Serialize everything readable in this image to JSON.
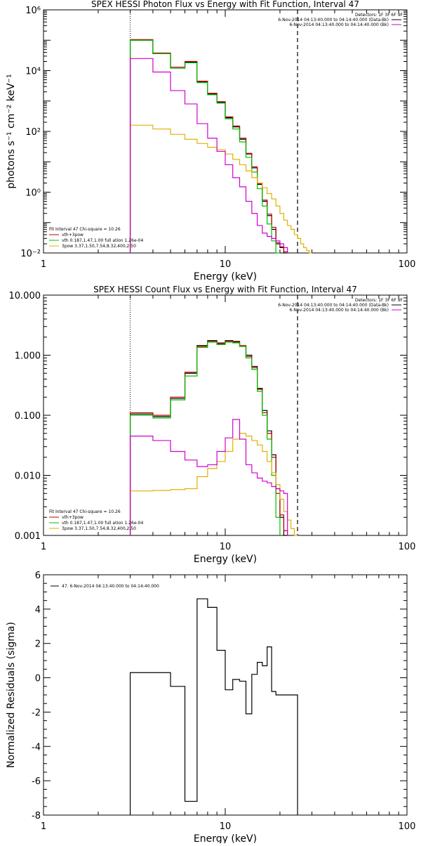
{
  "colors": {
    "total": "#c00000",
    "thermal": "#00c000",
    "nonthermal": "#e0b000",
    "background": "#d000d0",
    "data": "#000000"
  },
  "chart_data": [
    {
      "type": "line",
      "title": "SPEX HESSI Photon Flux vs Energy with Fit Function, Interval 47",
      "xlabel": "Energy (keV)",
      "ylabel": "photons s⁻¹ cm⁻² keV⁻¹",
      "xscale": "log",
      "yscale": "log",
      "xlim": [
        1,
        100
      ],
      "ylim": [
        0.01,
        1000000
      ],
      "xticks": [
        "1",
        "10",
        "100"
      ],
      "yticks": [
        {
          "value": 0.01,
          "label": "10⁻²"
        },
        {
          "value": 1,
          "label": "10⁰"
        },
        {
          "value": 100,
          "label": "10²"
        },
        {
          "value": 10000,
          "label": "10⁴"
        },
        {
          "value": 1000000,
          "label": "10⁶"
        }
      ],
      "detectors": "Detectors: 1F 3F 6F 9F",
      "legend_right": [
        {
          "text": "6-Nov-2014 04:13:40.000 to 04:14:40.000 (Data-Bk)",
          "color": "#000000"
        },
        {
          "text": "6-Nov-2014 04:13:40.000 to 04:14:40.000 (Bk)",
          "color": "#d000d0"
        }
      ],
      "fit_legend": [
        {
          "text": "Fit Interval 47   Chi-square = 10.26",
          "color": "#000000"
        },
        {
          "text": "vth+3pow",
          "color": "#c00000"
        },
        {
          "text": "vth 0.187,1.47,1.00  full ation 1.26e-04",
          "color": "#00c000"
        },
        {
          "text": "3pow 3.37,1.50,7.54,8.32,400,2.50",
          "color": "#e0b000"
        }
      ],
      "edges": [
        3,
        4,
        5,
        6,
        7,
        8,
        9,
        10,
        11,
        12,
        13,
        14,
        15,
        16,
        17,
        18,
        19,
        20,
        21,
        22,
        23,
        24,
        25,
        26,
        27,
        28,
        29,
        30
      ],
      "series": [
        {
          "key": "data",
          "color": "#000000",
          "values": [
            100000,
            36000,
            12000,
            19000,
            4200,
            1700,
            900,
            280,
            140,
            55,
            18,
            6.3,
            1.8,
            0.5,
            0.17,
            0.06,
            0.02,
            0.015,
            0.01
          ]
        },
        {
          "key": "total",
          "color": "#c00000",
          "values": [
            105000,
            38000,
            13000,
            20000,
            4500,
            1800,
            950,
            300,
            150,
            60,
            19,
            6.8,
            1.9,
            0.55,
            0.19,
            0.07,
            0.022,
            0.016,
            0.011
          ]
        },
        {
          "key": "thermal",
          "color": "#00c000",
          "values": [
            100000,
            36000,
            12000,
            18000,
            4000,
            1600,
            850,
            260,
            120,
            45,
            14,
            4.6,
            1.3,
            0.35,
            0.09,
            0.025,
            0.01
          ]
        },
        {
          "key": "nonthermal",
          "color": "#e0b000",
          "values": [
            160,
            120,
            80,
            55,
            40,
            30,
            25,
            18,
            12,
            8,
            5,
            3,
            2,
            1.4,
            0.9,
            0.6,
            0.35,
            0.2,
            0.12,
            0.08,
            0.06,
            0.04,
            0.03,
            0.02,
            0.015,
            0.012,
            0.01
          ]
        },
        {
          "key": "background",
          "color": "#d000d0",
          "values": [
            25000,
            9000,
            2200,
            800,
            180,
            60,
            22,
            8,
            3,
            1.5,
            0.5,
            0.2,
            0.08,
            0.045,
            0.035,
            0.03,
            0.025,
            0.02,
            0.015
          ]
        }
      ],
      "vline_dotted": 3,
      "vline_dashed": 25
    },
    {
      "type": "line",
      "title": "SPEX HESSI Count Flux vs Energy with Fit Function, Interval 47",
      "xlabel": "Energy (keV)",
      "ylabel": "",
      "xscale": "log",
      "yscale": "log",
      "xlim": [
        1,
        100
      ],
      "ylim": [
        0.001,
        10
      ],
      "xticks": [
        "1",
        "10",
        "100"
      ],
      "yticks": [
        {
          "value": 0.001,
          "label": "0.001"
        },
        {
          "value": 0.01,
          "label": "0.010"
        },
        {
          "value": 0.1,
          "label": "0.100"
        },
        {
          "value": 1,
          "label": "1.000"
        },
        {
          "value": 10,
          "label": "10.000"
        }
      ],
      "detectors": "Detectors: 1F 3F 6F 9F",
      "legend_right": [
        {
          "text": "6-Nov-2014 04:13:40.000 to 04:14:40.000 (Data-Bk)",
          "color": "#000000"
        },
        {
          "text": "6-Nov-2014 04:13:40.000 to 04:14:40.000 (Bk)",
          "color": "#d000d0"
        }
      ],
      "fit_legend": [
        {
          "text": "Fit Interval 47   Chi-square = 10.26",
          "color": "#000000"
        },
        {
          "text": "vth+3pow",
          "color": "#c00000"
        },
        {
          "text": "vth 0.187,1.47,1.00  full ation 1.26e-04",
          "color": "#00c000"
        },
        {
          "text": "3pow 3.37,1.50,7.54,8.32,400,2.50",
          "color": "#e0b000"
        }
      ],
      "edges": [
        3,
        4,
        5,
        6,
        7,
        8,
        9,
        10,
        11,
        12,
        13,
        14,
        15,
        16,
        17,
        18,
        19,
        20,
        21,
        22,
        23,
        24,
        25,
        26,
        27,
        28,
        29,
        30
      ],
      "series": [
        {
          "key": "data",
          "color": "#000000",
          "values": [
            0.105,
            0.095,
            0.19,
            0.5,
            1.45,
            1.75,
            1.6,
            1.75,
            1.7,
            1.4,
            1.0,
            0.65,
            0.28,
            0.12,
            0.055,
            0.022,
            0.006,
            0.002,
            0.001
          ]
        },
        {
          "key": "total",
          "color": "#c00000",
          "values": [
            0.11,
            0.1,
            0.2,
            0.52,
            1.4,
            1.7,
            1.55,
            1.7,
            1.65,
            1.45,
            0.95,
            0.62,
            0.27,
            0.11,
            0.05,
            0.02,
            0.005,
            0.0022,
            0.0012
          ]
        },
        {
          "key": "thermal",
          "color": "#00c000",
          "values": [
            0.1,
            0.09,
            0.18,
            0.45,
            1.35,
            1.65,
            1.5,
            1.65,
            1.6,
            1.4,
            0.9,
            0.58,
            0.25,
            0.1,
            0.04,
            0.01,
            0.002
          ]
        },
        {
          "key": "nonthermal",
          "color": "#e0b000",
          "values": [
            0.0055,
            0.0056,
            0.0058,
            0.006,
            0.0095,
            0.013,
            0.017,
            0.025,
            0.04,
            0.05,
            0.045,
            0.038,
            0.032,
            0.025,
            0.017,
            0.011,
            0.007,
            0.004,
            0.0025,
            0.0018,
            0.0013,
            0.001
          ]
        },
        {
          "key": "background",
          "color": "#d000d0",
          "values": [
            0.045,
            0.038,
            0.025,
            0.018,
            0.014,
            0.015,
            0.025,
            0.042,
            0.085,
            0.04,
            0.015,
            0.011,
            0.009,
            0.008,
            0.0075,
            0.0065,
            0.006,
            0.0055,
            0.005
          ]
        }
      ],
      "vline_dotted": 3,
      "vline_dashed": 25
    },
    {
      "type": "line",
      "title": "",
      "xlabel": "Energy (keV)",
      "ylabel": "Normalized Residuals (sigma)",
      "xscale": "log",
      "yscale": "linear",
      "xlim": [
        1,
        100
      ],
      "ylim": [
        -8,
        6
      ],
      "xticks": [
        "1",
        "10",
        "100"
      ],
      "yticks": [
        {
          "value": -8,
          "label": "-8"
        },
        {
          "value": -6,
          "label": "-6"
        },
        {
          "value": -4,
          "label": "-4"
        },
        {
          "value": -2,
          "label": "-2"
        },
        {
          "value": 0,
          "label": "0"
        },
        {
          "value": 2,
          "label": "2"
        },
        {
          "value": 4,
          "label": "4"
        },
        {
          "value": 6,
          "label": "6"
        }
      ],
      "legend": "47.  6-Nov-2014 04:13:40.000 to 04:14:40.000",
      "edges": [
        3,
        4,
        5,
        6,
        7,
        8,
        9,
        10,
        11,
        12,
        13,
        14,
        15,
        16,
        17,
        18,
        19,
        20,
        21,
        22,
        23,
        24,
        25
      ],
      "series": [
        {
          "key": "residual",
          "color": "#000000",
          "values": [
            0.3,
            0.3,
            -0.5,
            -7.2,
            4.6,
            4.1,
            1.6,
            -0.7,
            -0.1,
            -0.2,
            -2.1,
            0.2,
            0.9,
            0.7,
            1.8,
            -0.8,
            -1.0,
            -1.0,
            -1.0,
            -1.0,
            -1.0,
            -1.0
          ]
        }
      ]
    }
  ]
}
